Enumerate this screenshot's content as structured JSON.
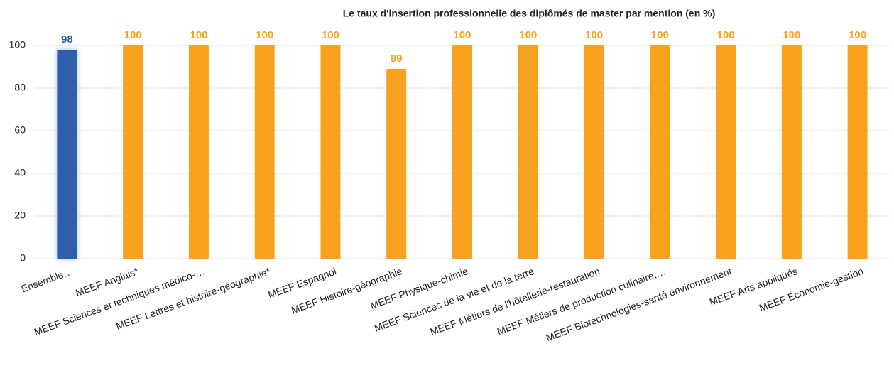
{
  "chart_data": {
    "type": "bar",
    "title": "Le taux d'insertion professionnelle des diplômés de master par mention (en %)",
    "categories": [
      "Ensemble…",
      "MEEF Anglais*",
      "MEEF Sciences et techniques médico-…",
      "MEEF Lettres et histoire-géographie*",
      "MEEF Espagnol",
      "MEEF Histoire-géographie",
      "MEEF Physique-chimie",
      "MEEF Sciences de la vie et de la terre",
      "MEEF Métiers de l'hôtellerie-restauration",
      "MEEF Métiers de production culinaire,…",
      "MEEF Biotechnologies-santé environnement",
      "MEEF Arts appliqués",
      "MEEF Économie-gestion"
    ],
    "values": [
      98,
      100,
      100,
      100,
      100,
      89,
      100,
      100,
      100,
      100,
      100,
      100,
      100
    ],
    "colors": [
      "#2e5ea8",
      "#f7a11f",
      "#f7a11f",
      "#f7a11f",
      "#f7a11f",
      "#f7a11f",
      "#f7a11f",
      "#f7a11f",
      "#f7a11f",
      "#f7a11f",
      "#f7a11f",
      "#f7a11f",
      "#f7a11f"
    ],
    "ylim": [
      0,
      100
    ],
    "yticks": [
      0,
      20,
      40,
      60,
      80,
      100
    ],
    "grid": true
  }
}
